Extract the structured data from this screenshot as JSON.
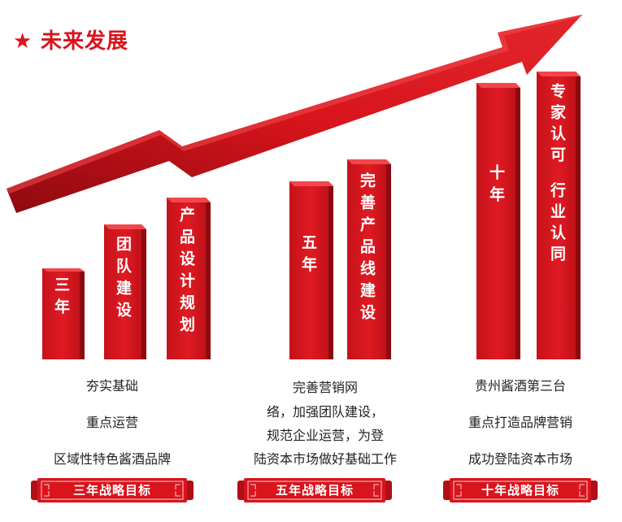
{
  "header": {
    "title": "未来发展"
  },
  "bars": [
    {
      "text": "三年"
    },
    {
      "text": "团队建设"
    },
    {
      "text": "产品设计规划"
    },
    {
      "text": "五年"
    },
    {
      "text": "完善产品线建设"
    },
    {
      "text": "十年"
    },
    {
      "col1": "专家认可",
      "col2": "行业认同"
    }
  ],
  "columns": [
    {
      "lines": [
        "夯实基础",
        "重点运营",
        "区域性特色酱酒品牌"
      ],
      "banner": "三年战略目标"
    },
    {
      "lines": [
        "完善营销网",
        "络，加强团队建设，",
        "规范企业运营，为登",
        "陆资本市场做好基础工作"
      ],
      "banner": "五年战略目标"
    },
    {
      "lines": [
        "贵州酱酒第三台",
        "重点打造品牌营销",
        "成功登陆资本市场"
      ],
      "banner": "十年战略目标"
    }
  ],
  "colors": {
    "red": "#d8141c",
    "dark_red": "#9c0d12",
    "text": "#222222"
  }
}
